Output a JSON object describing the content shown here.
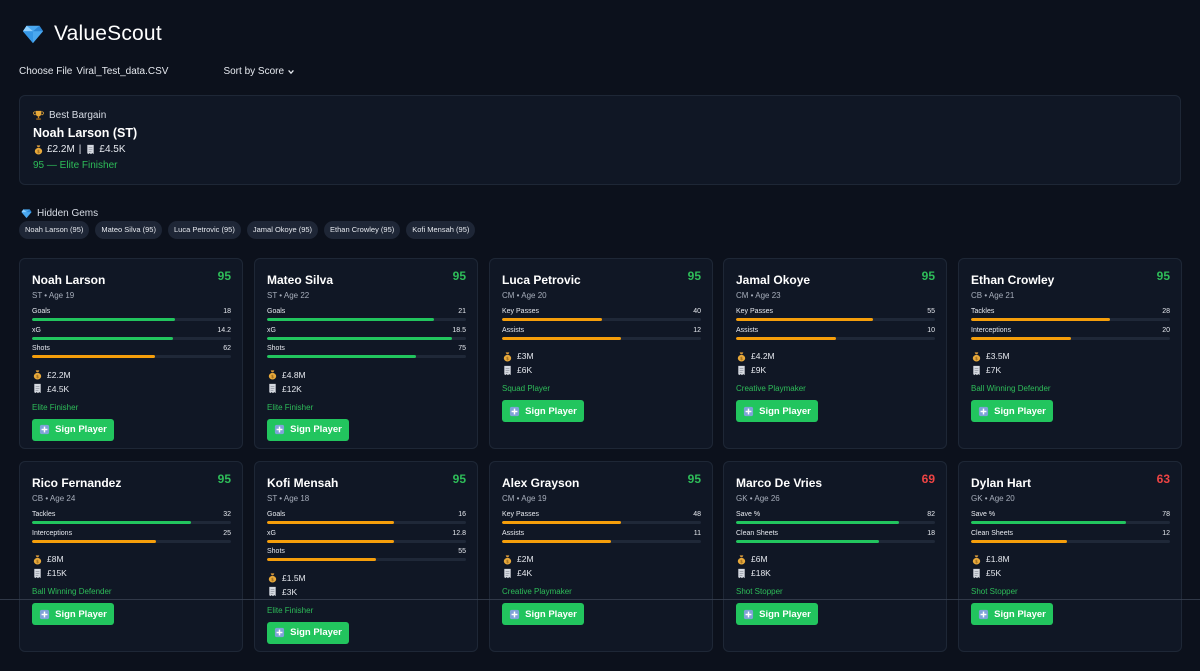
{
  "app": {
    "title": "ValueScout"
  },
  "controls": {
    "choose_file": "Choose File",
    "file_name": "Viral_Test_data.CSV",
    "sort_label": "Sort by Score"
  },
  "bargain": {
    "title": "Best Bargain",
    "player": "Noah Larson (ST)",
    "value": "£2.2M",
    "separator": "|",
    "wage": "£4.5K",
    "score_line": "95 — Elite Finisher"
  },
  "gems": {
    "title": "Hidden Gems",
    "chips": [
      "Noah Larson (95)",
      "Mateo Silva (95)",
      "Luca Petrovic (95)",
      "Jamal Okoye (95)",
      "Ethan Crowley (95)",
      "Kofi Mensah (95)"
    ]
  },
  "colors": {
    "green": "#22c55e",
    "orange": "#f59e0b",
    "red": "#ef4444",
    "score_green": "#2ebd59"
  },
  "sign_label": "Sign Player",
  "players": [
    {
      "name": "Noah Larson",
      "meta": "ST • Age 19",
      "score": "95",
      "score_color": "green",
      "stats": [
        {
          "label": "Goals",
          "value": "18",
          "pct": 0.72,
          "color": "green"
        },
        {
          "label": "xG",
          "value": "14.2",
          "pct": 0.71,
          "color": "green"
        },
        {
          "label": "Shots",
          "value": "62",
          "pct": 0.62,
          "color": "orange"
        }
      ],
      "value": "£2.2M",
      "wage": "£4.5K",
      "role": "Elite Finisher"
    },
    {
      "name": "Mateo Silva",
      "meta": "ST • Age 22",
      "score": "95",
      "score_color": "green",
      "stats": [
        {
          "label": "Goals",
          "value": "21",
          "pct": 0.84,
          "color": "green"
        },
        {
          "label": "xG",
          "value": "18.5",
          "pct": 0.93,
          "color": "green"
        },
        {
          "label": "Shots",
          "value": "75",
          "pct": 0.75,
          "color": "green"
        }
      ],
      "value": "£4.8M",
      "wage": "£12K",
      "role": "Elite Finisher"
    },
    {
      "name": "Luca Petrovic",
      "meta": "CM • Age 20",
      "score": "95",
      "score_color": "green",
      "stats": [
        {
          "label": "Key Passes",
          "value": "40",
          "pct": 0.5,
          "color": "orange"
        },
        {
          "label": "Assists",
          "value": "12",
          "pct": 0.6,
          "color": "orange"
        }
      ],
      "value": "£3M",
      "wage": "£6K",
      "role": "Squad Player"
    },
    {
      "name": "Jamal Okoye",
      "meta": "CM • Age 23",
      "score": "95",
      "score_color": "green",
      "stats": [
        {
          "label": "Key Passes",
          "value": "55",
          "pct": 0.69,
          "color": "orange"
        },
        {
          "label": "Assists",
          "value": "10",
          "pct": 0.5,
          "color": "orange"
        }
      ],
      "value": "£4.2M",
      "wage": "£9K",
      "role": "Creative Playmaker"
    },
    {
      "name": "Ethan Crowley",
      "meta": "CB • Age 21",
      "score": "95",
      "score_color": "green",
      "stats": [
        {
          "label": "Tackles",
          "value": "28",
          "pct": 0.7,
          "color": "orange"
        },
        {
          "label": "Interceptions",
          "value": "20",
          "pct": 0.5,
          "color": "orange"
        }
      ],
      "value": "£3.5M",
      "wage": "£7K",
      "role": "Ball Winning Defender"
    },
    {
      "name": "Rico Fernandez",
      "meta": "CB • Age 24",
      "score": "95",
      "score_color": "green",
      "stats": [
        {
          "label": "Tackles",
          "value": "32",
          "pct": 0.8,
          "color": "green"
        },
        {
          "label": "Interceptions",
          "value": "25",
          "pct": 0.625,
          "color": "orange"
        }
      ],
      "value": "£8M",
      "wage": "£15K",
      "role": "Ball Winning Defender"
    },
    {
      "name": "Kofi Mensah",
      "meta": "ST • Age 18",
      "score": "95",
      "score_color": "green",
      "stats": [
        {
          "label": "Goals",
          "value": "16",
          "pct": 0.64,
          "color": "orange"
        },
        {
          "label": "xG",
          "value": "12.8",
          "pct": 0.64,
          "color": "orange"
        },
        {
          "label": "Shots",
          "value": "55",
          "pct": 0.55,
          "color": "orange"
        }
      ],
      "value": "£1.5M",
      "wage": "£3K",
      "role": "Elite Finisher"
    },
    {
      "name": "Alex Grayson",
      "meta": "CM • Age 19",
      "score": "95",
      "score_color": "green",
      "stats": [
        {
          "label": "Key Passes",
          "value": "48",
          "pct": 0.6,
          "color": "orange"
        },
        {
          "label": "Assists",
          "value": "11",
          "pct": 0.55,
          "color": "orange"
        }
      ],
      "value": "£2M",
      "wage": "£4K",
      "role": "Creative Playmaker"
    },
    {
      "name": "Marco De Vries",
      "meta": "GK • Age 26",
      "score": "69",
      "score_color": "red",
      "stats": [
        {
          "label": "Save %",
          "value": "82",
          "pct": 0.82,
          "color": "green"
        },
        {
          "label": "Clean Sheets",
          "value": "18",
          "pct": 0.72,
          "color": "green"
        }
      ],
      "value": "£6M",
      "wage": "£18K",
      "role": "Shot Stopper"
    },
    {
      "name": "Dylan Hart",
      "meta": "GK • Age 20",
      "score": "63",
      "score_color": "red",
      "stats": [
        {
          "label": "Save %",
          "value": "78",
          "pct": 0.78,
          "color": "green"
        },
        {
          "label": "Clean Sheets",
          "value": "12",
          "pct": 0.48,
          "color": "orange"
        }
      ],
      "value": "£1.8M",
      "wage": "£5K",
      "role": "Shot Stopper"
    }
  ]
}
